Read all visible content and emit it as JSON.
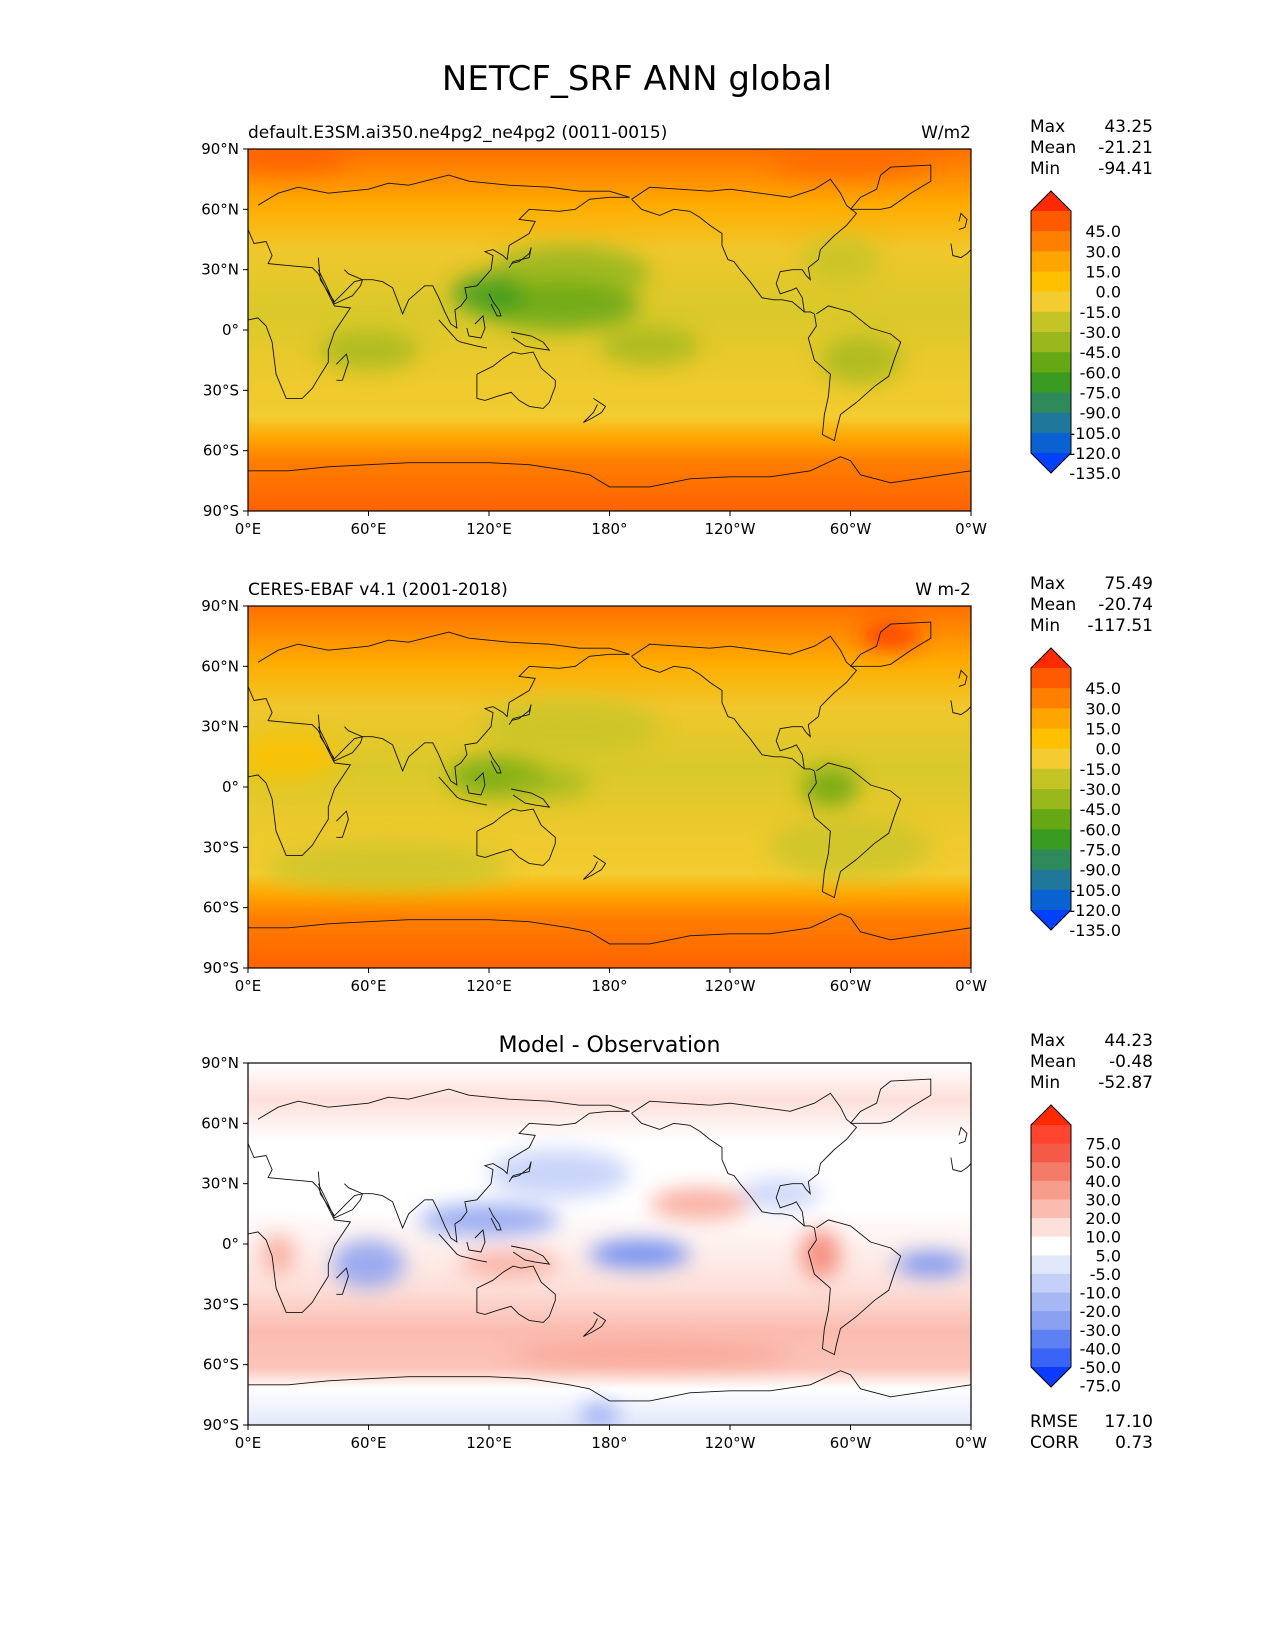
{
  "title": "NETCF_SRF ANN global",
  "lon_ticks": [
    "0°E",
    "60°E",
    "120°E",
    "180°",
    "120°W",
    "60°W",
    "0°W"
  ],
  "lat_ticks": [
    "90°N",
    "60°N",
    "30°N",
    "0°",
    "30°S",
    "60°S",
    "90°S"
  ],
  "stats_labels": {
    "max": "Max",
    "mean": "Mean",
    "min": "Min",
    "rmse": "RMSE",
    "corr": "CORR"
  },
  "panels": [
    {
      "id": "model",
      "title_left": "default.E3SM.ai350.ne4pg2_ne4pg2 (0011-0015)",
      "title_center": "",
      "units": "W/m2",
      "stats": {
        "max": "43.25",
        "mean": "-21.21",
        "min": "-94.41"
      },
      "colorbar": {
        "labels": [
          "45.0",
          "30.0",
          "15.0",
          "0.0",
          "-15.0",
          "-30.0",
          "-45.0",
          "-60.0",
          "-75.0",
          "-90.0",
          "-105.0",
          "-120.0",
          "-135.0"
        ],
        "colors": [
          "#ff2a00",
          "#ff5a00",
          "#ff7f00",
          "#ffa500",
          "#ffc000",
          "#f2cc30",
          "#c4c427",
          "#99b81c",
          "#66a814",
          "#3a9b22",
          "#2e8a5b",
          "#1f7799",
          "#0a62d2",
          "#0041ff"
        ]
      }
    },
    {
      "id": "obs",
      "title_left": "CERES-EBAF v4.1 (2001-2018)",
      "title_center": "",
      "units": "W m-2",
      "stats": {
        "max": "75.49",
        "mean": "-20.74",
        "min": "-117.51"
      },
      "colorbar": {
        "labels": [
          "45.0",
          "30.0",
          "15.0",
          "0.0",
          "-15.0",
          "-30.0",
          "-45.0",
          "-60.0",
          "-75.0",
          "-90.0",
          "-105.0",
          "-120.0",
          "-135.0"
        ],
        "colors": [
          "#ff2a00",
          "#ff5a00",
          "#ff7f00",
          "#ffa500",
          "#ffc000",
          "#f2cc30",
          "#c4c427",
          "#99b81c",
          "#66a814",
          "#3a9b22",
          "#2e8a5b",
          "#1f7799",
          "#0a62d2",
          "#0041ff"
        ]
      }
    },
    {
      "id": "diff",
      "title_left": "",
      "title_center": "Model - Observation",
      "units": "",
      "stats": {
        "max": "44.23",
        "mean": "-0.48",
        "min": "-52.87",
        "rmse": "17.10",
        "corr": "0.73"
      },
      "colorbar": {
        "labels": [
          "75.0",
          "50.0",
          "40.0",
          "30.0",
          "20.0",
          "10.0",
          "5.0",
          "-5.0",
          "-10.0",
          "-20.0",
          "-30.0",
          "-40.0",
          "-50.0",
          "-75.0"
        ],
        "colors": [
          "#ff2a00",
          "#ff4530",
          "#f55a48",
          "#f47b68",
          "#f89c8c",
          "#fbbcb0",
          "#fde0da",
          "#ffffff",
          "#e2e8fb",
          "#c4d0f8",
          "#a6b8f4",
          "#8aa0f0",
          "#5d80f2",
          "#3a64f6",
          "#0a3cff"
        ]
      }
    }
  ]
}
